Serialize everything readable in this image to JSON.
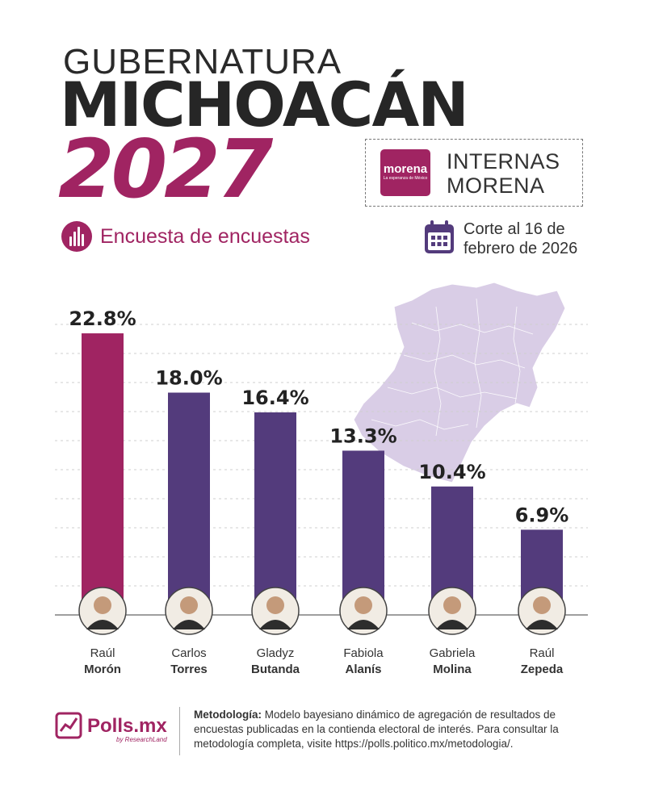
{
  "header": {
    "line1": "GUBERNATURA",
    "line2": "MICHOACÁN",
    "line3": "2027",
    "subtitle": "Encuesta de encuestas"
  },
  "badge": {
    "logo_text": "morena",
    "logo_tagline": "La esperanza de México",
    "label_line1": "INTERNAS",
    "label_line2": "MORENA"
  },
  "cutoff": {
    "text_line1": "Corte al 16 de",
    "text_line2": "febrero de 2026",
    "icon": "calendar-icon"
  },
  "colors": {
    "primary": "#a02462",
    "secondary": "#533b7c",
    "map": "#d9cde6",
    "text": "#333333"
  },
  "chart_data": {
    "type": "bar",
    "categories": [
      "Raúl Morón",
      "Carlos Torres",
      "Gladyz Butanda",
      "Fabiola Alanís",
      "Gabriela Molina",
      "Raúl Zepeda"
    ],
    "values": [
      22.8,
      18.0,
      16.4,
      13.3,
      10.4,
      6.9
    ],
    "value_labels": [
      "22.8%",
      "18.0%",
      "16.4%",
      "13.3%",
      "10.4%",
      "6.9%"
    ],
    "first_names": [
      "Raúl",
      "Carlos",
      "Gladyz",
      "Fabiola",
      "Gabriela",
      "Raúl"
    ],
    "last_names": [
      "Morón",
      "Torres",
      "Butanda",
      "Alanís",
      "Molina",
      "Zepeda"
    ],
    "highlight_index": 0,
    "ylim": [
      0,
      23
    ],
    "grid": true
  },
  "footer": {
    "brand": "Polls.mx",
    "brand_sub": "by ResearchLand",
    "method_label": "Metodología:",
    "method_text": " Modelo bayesiano dinámico de agregación de resultados de encuestas publicadas en la contienda electoral de interés. Para consultar la metodología completa, visite https://polls.politico.mx/metodologia/."
  }
}
